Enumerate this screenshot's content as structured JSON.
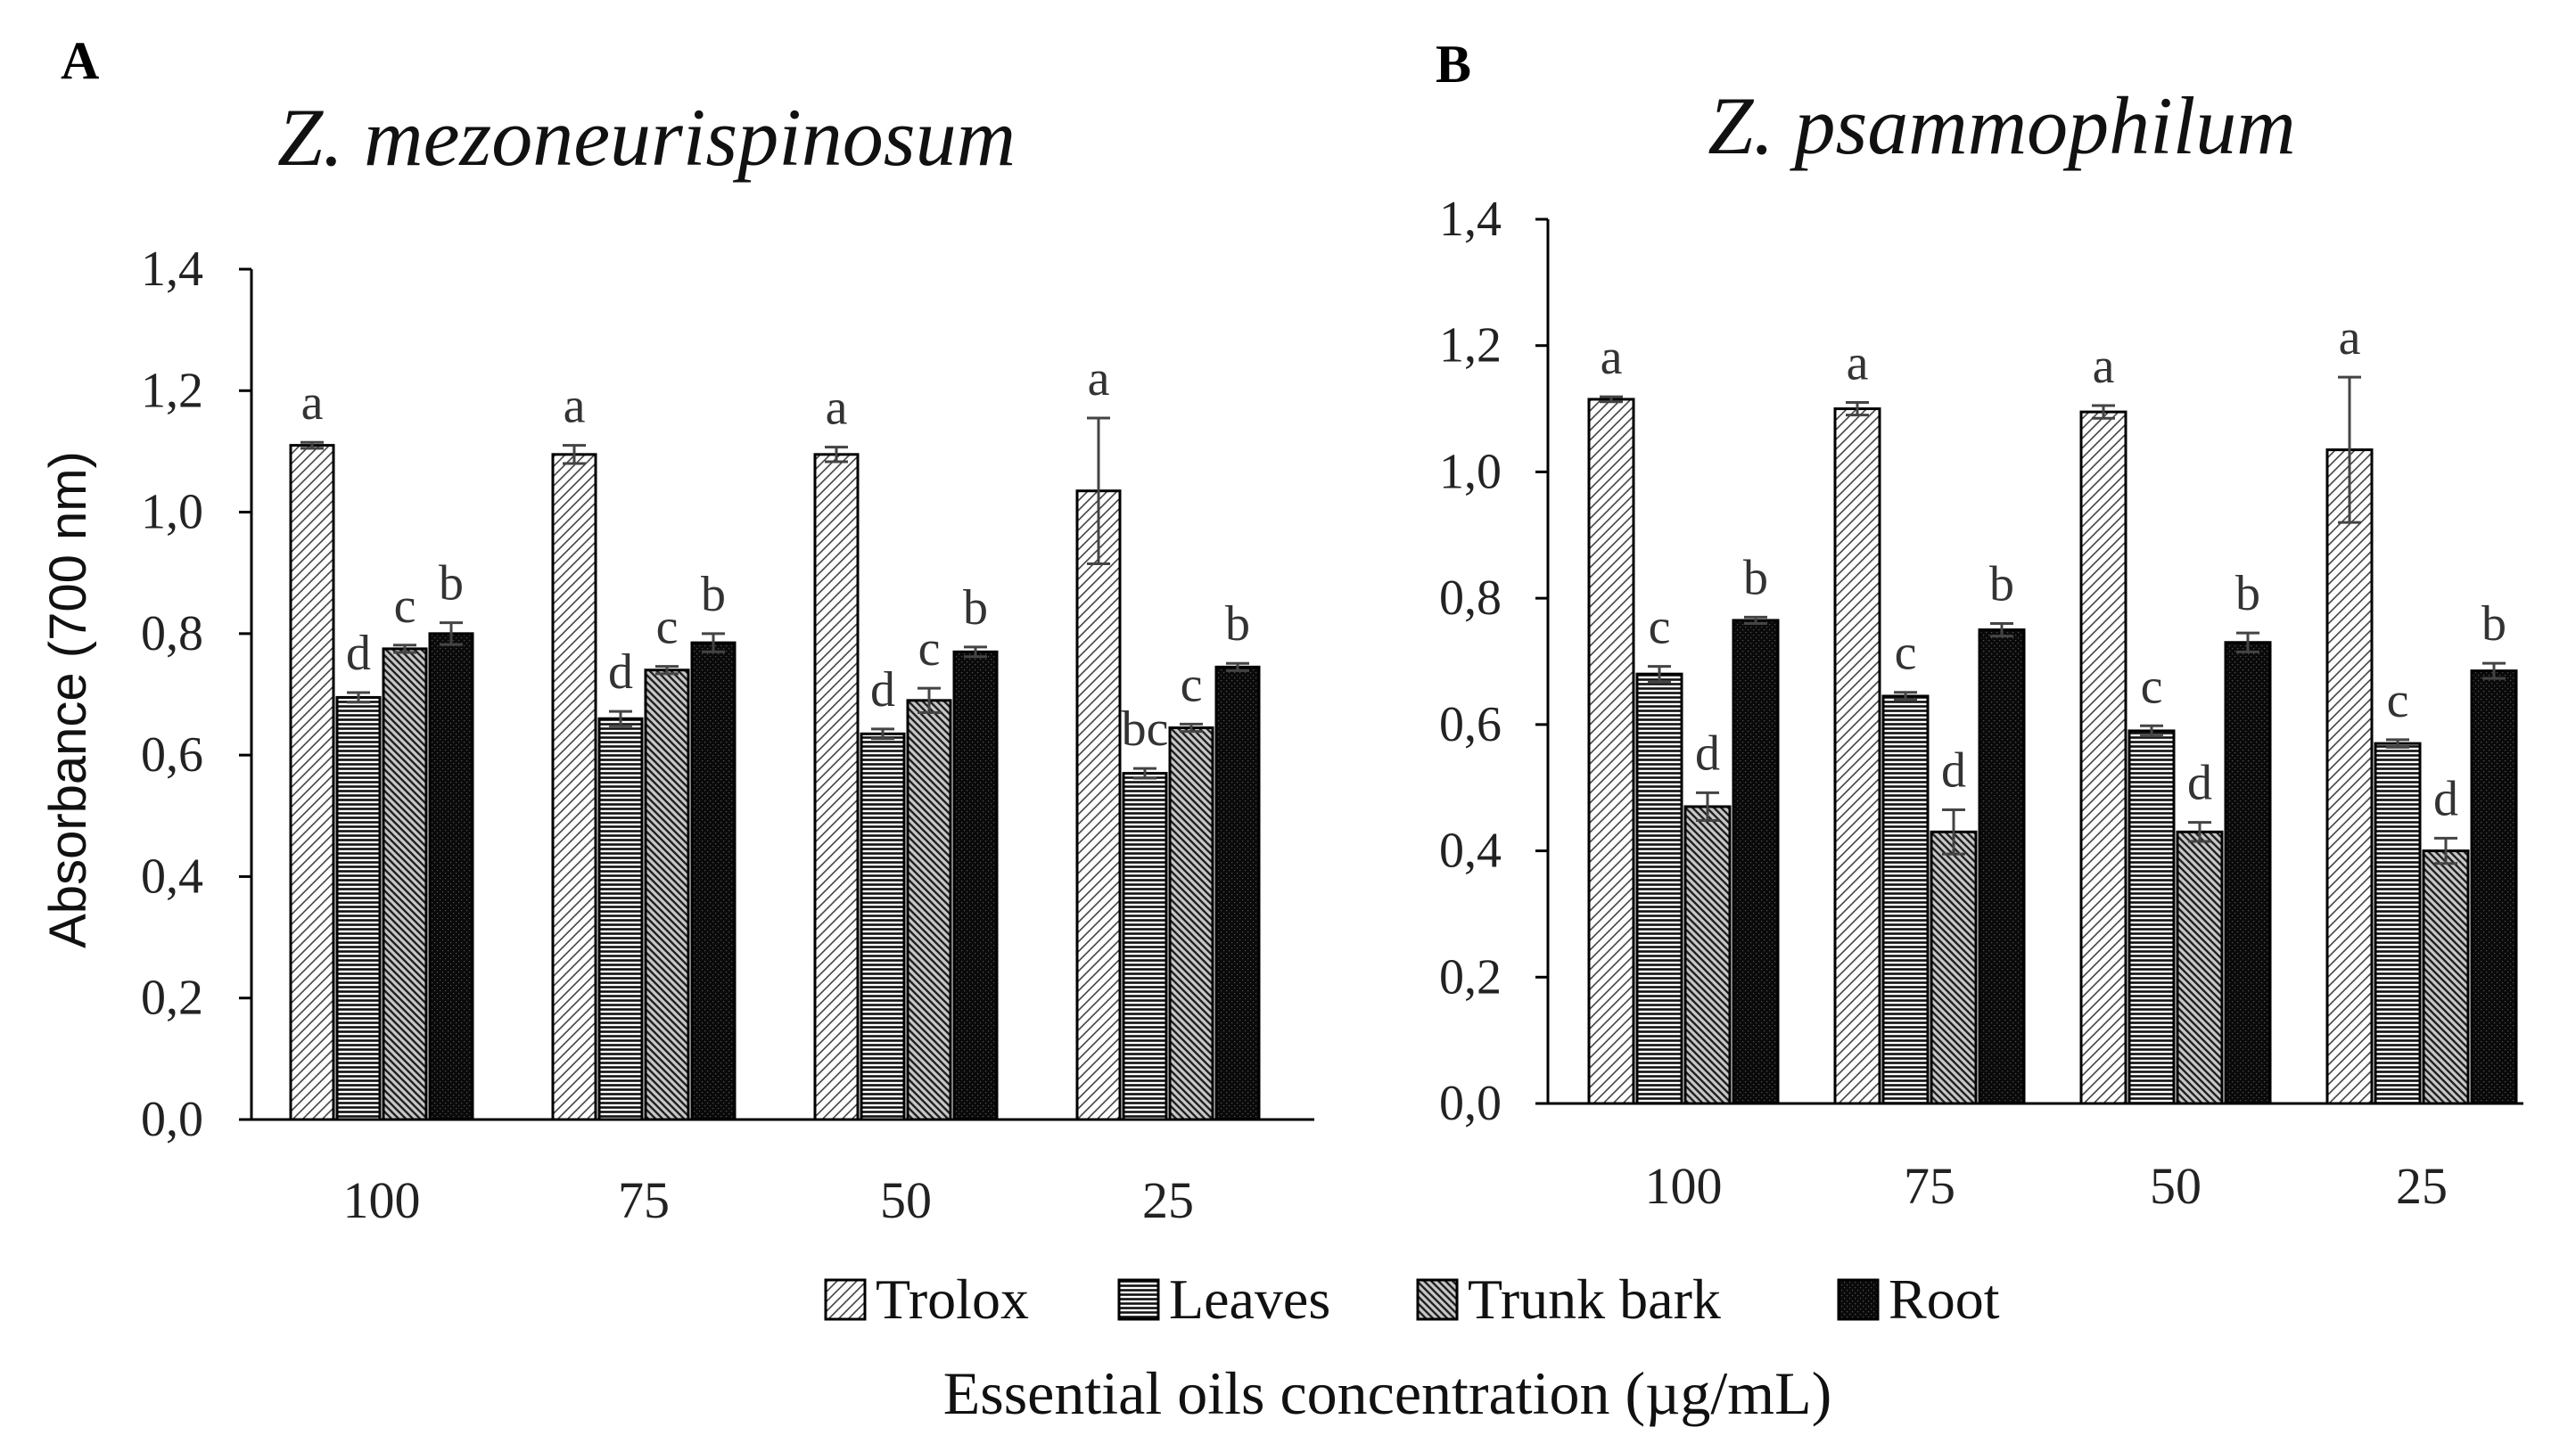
{
  "figure": {
    "legend": [
      {
        "name": "Trolox",
        "pattern": "hatch-light"
      },
      {
        "name": "Leaves",
        "pattern": "hlines"
      },
      {
        "name": "Trunk bark",
        "pattern": "hatch-dark"
      },
      {
        "name": "Root",
        "pattern": "solid-dark"
      }
    ],
    "xlabel": "Essential oils concentration (µg/mL)",
    "colors": {
      "ink": "#000000",
      "text": "#222222",
      "letters": "#333333",
      "background": "#ffffff"
    }
  },
  "chart_data": [
    {
      "type": "bar",
      "panel": "A",
      "title": "Z. mezoneurispinosum",
      "ylabel": "Absorbance (700 nm)",
      "xlabel": "",
      "ylim": [
        0,
        1.4
      ],
      "yticks": [
        "0,0",
        "0,2",
        "0,4",
        "0,6",
        "0,8",
        "1,0",
        "1,2",
        "1,4"
      ],
      "categories": [
        "100",
        "75",
        "50",
        "25"
      ],
      "series": [
        {
          "name": "Trolox",
          "values": [
            1.11,
            1.095,
            1.095,
            1.035
          ],
          "errors": [
            0.005,
            0.015,
            0.012,
            0.12
          ],
          "letters": [
            "a",
            "a",
            "a",
            "a"
          ]
        },
        {
          "name": "Leaves",
          "values": [
            0.695,
            0.66,
            0.635,
            0.57
          ],
          "errors": [
            0.008,
            0.012,
            0.008,
            0.008
          ],
          "letters": [
            "d",
            "d",
            "d",
            "bc"
          ]
        },
        {
          "name": "Trunk bark",
          "values": [
            0.775,
            0.74,
            0.69,
            0.645
          ],
          "errors": [
            0.006,
            0.006,
            0.02,
            0.006
          ],
          "letters": [
            "c",
            "c",
            "c",
            "c"
          ]
        },
        {
          "name": "Root",
          "values": [
            0.8,
            0.785,
            0.77,
            0.745
          ],
          "errors": [
            0.018,
            0.015,
            0.008,
            0.006
          ],
          "letters": [
            "b",
            "b",
            "b",
            "b"
          ]
        }
      ]
    },
    {
      "type": "bar",
      "panel": "B",
      "title": "Z. psammophilum",
      "ylabel": "",
      "xlabel": "",
      "ylim": [
        0,
        1.4
      ],
      "yticks": [
        "0,0",
        "0,2",
        "0,4",
        "0,6",
        "0,8",
        "1,0",
        "1,2",
        "1,4"
      ],
      "categories": [
        "100",
        "75",
        "50",
        "25"
      ],
      "series": [
        {
          "name": "Trolox",
          "values": [
            1.115,
            1.1,
            1.095,
            1.035
          ],
          "errors": [
            0.004,
            0.01,
            0.01,
            0.115
          ],
          "letters": [
            "a",
            "a",
            "a",
            "a"
          ]
        },
        {
          "name": "Leaves",
          "values": [
            0.68,
            0.645,
            0.59,
            0.57
          ],
          "errors": [
            0.012,
            0.006,
            0.008,
            0.006
          ],
          "letters": [
            "c",
            "c",
            "c",
            "c"
          ]
        },
        {
          "name": "Trunk bark",
          "values": [
            0.47,
            0.43,
            0.43,
            0.4
          ],
          "errors": [
            0.022,
            0.035,
            0.015,
            0.02
          ],
          "letters": [
            "d",
            "d",
            "d",
            "d"
          ]
        },
        {
          "name": "Root",
          "values": [
            0.765,
            0.75,
            0.73,
            0.685
          ],
          "errors": [
            0.005,
            0.01,
            0.015,
            0.012
          ],
          "letters": [
            "b",
            "b",
            "b",
            "b"
          ]
        }
      ]
    }
  ]
}
